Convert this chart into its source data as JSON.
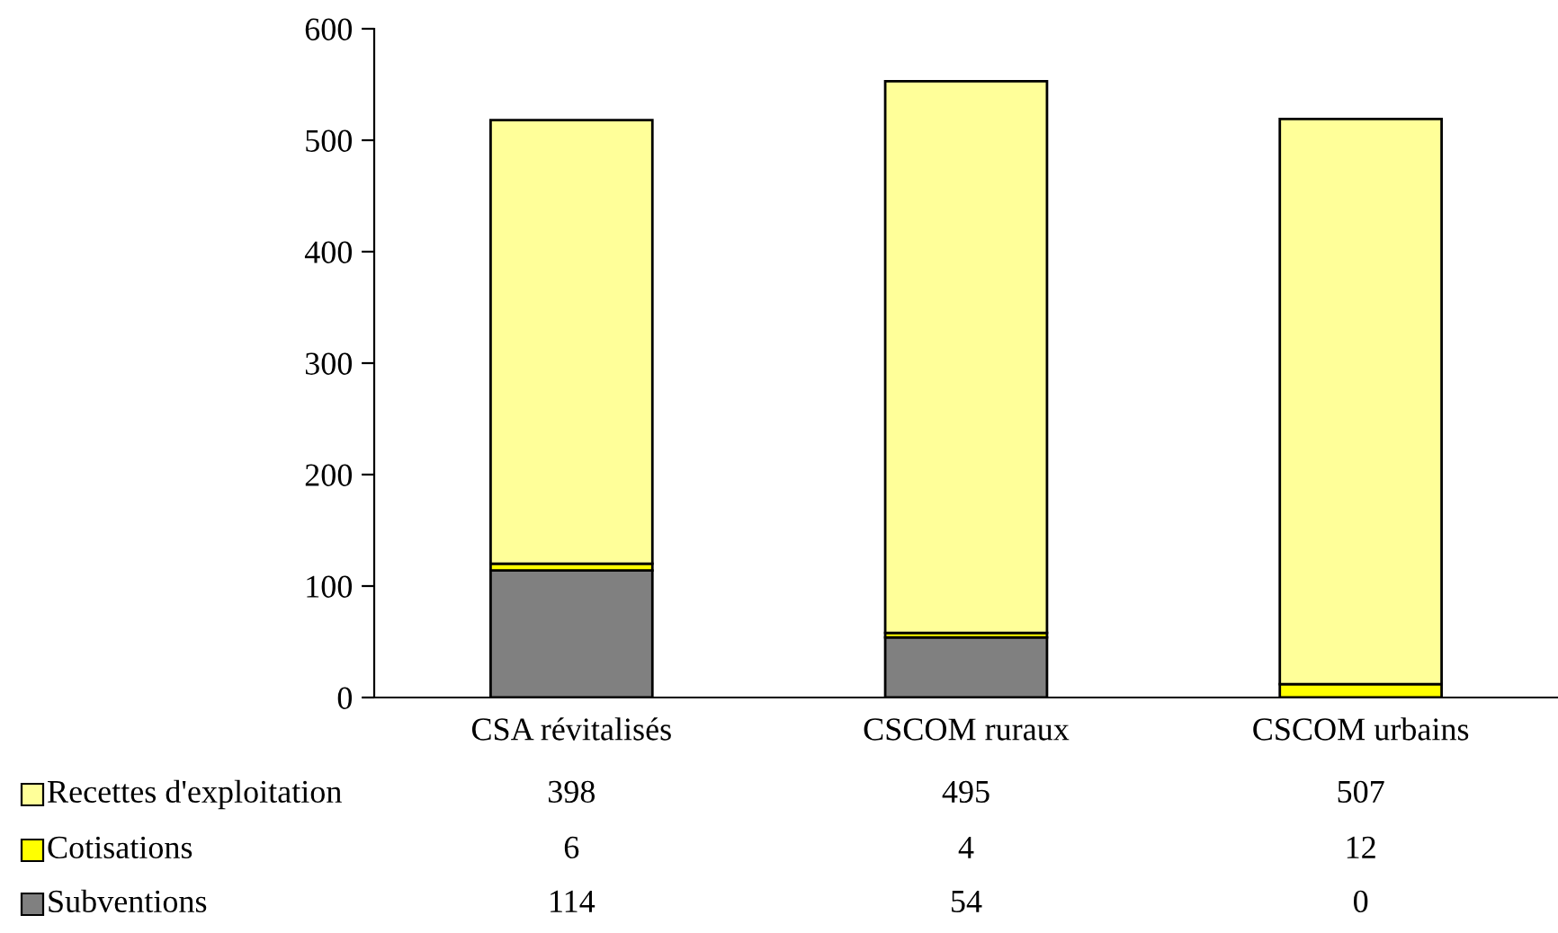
{
  "chart_data": {
    "type": "bar",
    "stacked": true,
    "categories": [
      "CSA révitalisés",
      "CSCOM ruraux",
      "CSCOM urbains"
    ],
    "series": [
      {
        "name": "Subventions",
        "color": "#808080",
        "values": [
          114,
          54,
          0
        ]
      },
      {
        "name": "Cotisations",
        "color": "#ffff00",
        "values": [
          6,
          4,
          12
        ]
      },
      {
        "name": "Recettes d'exploitation",
        "color": "#ffff99",
        "values": [
          398,
          495,
          507
        ]
      }
    ],
    "ylim": [
      0,
      600
    ],
    "yticks": [
      0,
      100,
      200,
      300,
      400,
      500,
      600
    ],
    "grid": false,
    "data_labels": true,
    "legend": "bottom left"
  }
}
